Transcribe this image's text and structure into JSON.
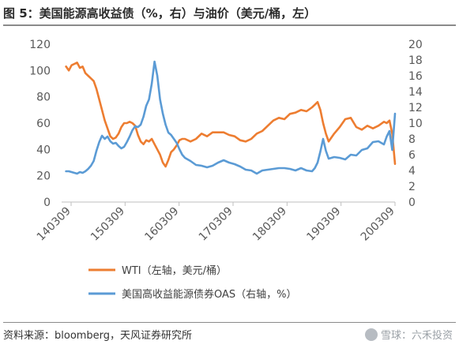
{
  "title": "图 5：美国能源高收益债（%，右）与油价（美元/桶，左）",
  "source": "资料来源：bloomberg，天风证券研究所",
  "watermark": "雪球：六禾投资",
  "colors": {
    "wti": "#ED7D31",
    "oas": "#5B9BD5",
    "axis": "#bfbfbf",
    "text": "#595959"
  },
  "chart_data": {
    "type": "line",
    "x_ticks": [
      "140309",
      "150309",
      "160309",
      "170309",
      "180309",
      "190309",
      "200309"
    ],
    "y_left": {
      "ticks": [
        0,
        20,
        40,
        60,
        80,
        100,
        120
      ],
      "lim": [
        0,
        120
      ]
    },
    "y_right": {
      "ticks": [
        0,
        2,
        4,
        6,
        8,
        10,
        12,
        14,
        16,
        18,
        20
      ],
      "lim": [
        0,
        20
      ]
    },
    "x_domain": [
      2014.17,
      2020.2
    ],
    "series": [
      {
        "name": "WTI（左轴，美元/桶）",
        "axis": "left",
        "x": [
          2014.25,
          2014.3,
          2014.35,
          2014.4,
          2014.45,
          2014.5,
          2014.55,
          2014.6,
          2014.65,
          2014.7,
          2014.75,
          2014.8,
          2014.85,
          2014.9,
          2014.95,
          2015.0,
          2015.05,
          2015.1,
          2015.15,
          2015.2,
          2015.25,
          2015.3,
          2015.35,
          2015.4,
          2015.45,
          2015.5,
          2015.55,
          2015.6,
          2015.65,
          2015.7,
          2015.75,
          2015.8,
          2015.85,
          2015.9,
          2015.95,
          2016.0,
          2016.05,
          2016.1,
          2016.15,
          2016.2,
          2016.25,
          2016.3,
          2016.35,
          2016.4,
          2016.5,
          2016.6,
          2016.7,
          2016.8,
          2016.9,
          2017.0,
          2017.1,
          2017.2,
          2017.3,
          2017.4,
          2017.5,
          2017.6,
          2017.7,
          2017.8,
          2017.9,
          2018.0,
          2018.1,
          2018.2,
          2018.3,
          2018.4,
          2018.5,
          2018.6,
          2018.7,
          2018.75,
          2018.8,
          2018.85,
          2018.9,
          2018.95,
          2019.0,
          2019.1,
          2019.2,
          2019.3,
          2019.4,
          2019.5,
          2019.6,
          2019.7,
          2019.8,
          2019.9,
          2020.0,
          2020.05,
          2020.1,
          2020.15,
          2020.2
        ],
        "y": [
          103,
          100,
          104,
          105,
          106,
          102,
          103,
          98,
          96,
          94,
          92,
          86,
          78,
          70,
          62,
          56,
          50,
          48,
          49,
          52,
          57,
          60,
          60,
          61,
          60,
          58,
          51,
          46,
          44,
          47,
          46,
          48,
          44,
          40,
          36,
          30,
          27,
          32,
          38,
          40,
          43,
          47,
          48,
          48,
          46,
          48,
          52,
          50,
          53,
          53,
          53,
          51,
          50,
          47,
          46,
          48,
          52,
          54,
          58,
          62,
          64,
          63,
          67,
          68,
          70,
          69,
          72,
          74,
          76,
          70,
          60,
          52,
          46,
          52,
          57,
          63,
          64,
          57,
          55,
          58,
          56,
          58,
          61,
          60,
          62,
          52,
          29
        ]
      },
      {
        "name": "美国高收益能源债券OAS（右轴，%）",
        "axis": "right",
        "x": [
          2014.25,
          2014.3,
          2014.35,
          2014.4,
          2014.45,
          2014.5,
          2014.55,
          2014.6,
          2014.65,
          2014.7,
          2014.75,
          2014.8,
          2014.85,
          2014.9,
          2014.95,
          2015.0,
          2015.05,
          2015.1,
          2015.15,
          2015.2,
          2015.25,
          2015.3,
          2015.35,
          2015.4,
          2015.45,
          2015.5,
          2015.55,
          2015.6,
          2015.65,
          2015.7,
          2015.75,
          2015.8,
          2015.85,
          2015.9,
          2015.95,
          2016.0,
          2016.05,
          2016.1,
          2016.15,
          2016.2,
          2016.25,
          2016.3,
          2016.35,
          2016.4,
          2016.5,
          2016.6,
          2016.7,
          2016.8,
          2016.9,
          2017.0,
          2017.1,
          2017.2,
          2017.3,
          2017.4,
          2017.5,
          2017.6,
          2017.7,
          2017.8,
          2017.9,
          2018.0,
          2018.1,
          2018.2,
          2018.3,
          2018.4,
          2018.5,
          2018.6,
          2018.7,
          2018.75,
          2018.8,
          2018.85,
          2018.9,
          2018.95,
          2019.0,
          2019.1,
          2019.2,
          2019.3,
          2019.4,
          2019.5,
          2019.6,
          2019.7,
          2019.8,
          2019.9,
          2020.0,
          2020.05,
          2020.1,
          2020.15,
          2020.2
        ],
        "y": [
          3.9,
          3.9,
          3.8,
          3.7,
          3.6,
          3.8,
          3.7,
          3.9,
          4.2,
          4.6,
          5.2,
          6.5,
          7.6,
          8.4,
          8.0,
          8.3,
          7.7,
          7.4,
          7.5,
          7.1,
          6.8,
          7.0,
          7.6,
          8.3,
          9.1,
          9.6,
          9.5,
          9.8,
          10.8,
          12.2,
          13.0,
          15.0,
          17.8,
          16.0,
          13.0,
          11.2,
          9.8,
          8.8,
          8.5,
          8.0,
          7.5,
          6.7,
          6.0,
          5.6,
          5.2,
          4.7,
          4.6,
          4.4,
          4.6,
          5.0,
          5.3,
          5.0,
          4.8,
          4.5,
          4.1,
          4.0,
          3.6,
          4.0,
          4.1,
          4.2,
          4.3,
          4.3,
          4.2,
          4.0,
          4.3,
          4.0,
          3.9,
          4.3,
          5.0,
          6.4,
          8.0,
          6.5,
          5.5,
          5.7,
          5.6,
          5.4,
          6.0,
          5.9,
          6.6,
          6.8,
          7.6,
          7.7,
          7.3,
          8.3,
          9.0,
          6.6,
          11.2
        ]
      }
    ]
  }
}
